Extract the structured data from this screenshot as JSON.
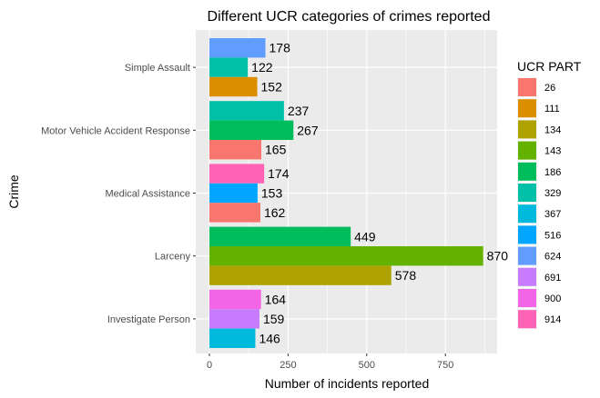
{
  "chart_data": {
    "type": "bar",
    "orientation": "horizontal",
    "title": "Different UCR categories of crimes reported",
    "xlabel": "Number of incidents reported",
    "ylabel": "Crime",
    "xlim": [
      0,
      950
    ],
    "x_ticks": [
      0,
      250,
      500,
      750
    ],
    "x_tick_labels": [
      "0",
      "250",
      "500",
      "750"
    ],
    "categories": [
      "Simple Assault",
      "Motor Vehicle Accident Response",
      "Medical Assistance",
      "Larceny",
      "Investigate Person"
    ],
    "bars": [
      {
        "category": "Simple Assault",
        "ucr_part": "624",
        "value": 178
      },
      {
        "category": "Simple Assault",
        "ucr_part": "329",
        "value": 122
      },
      {
        "category": "Simple Assault",
        "ucr_part": "111",
        "value": 152
      },
      {
        "category": "Motor Vehicle Accident Response",
        "ucr_part": "329",
        "value": 237
      },
      {
        "category": "Motor Vehicle Accident Response",
        "ucr_part": "186",
        "value": 267
      },
      {
        "category": "Motor Vehicle Accident Response",
        "ucr_part": "26",
        "value": 165
      },
      {
        "category": "Medical Assistance",
        "ucr_part": "914",
        "value": 174
      },
      {
        "category": "Medical Assistance",
        "ucr_part": "516",
        "value": 153
      },
      {
        "category": "Medical Assistance",
        "ucr_part": "26",
        "value": 162
      },
      {
        "category": "Larceny",
        "ucr_part": "186",
        "value": 449
      },
      {
        "category": "Larceny",
        "ucr_part": "143",
        "value": 870
      },
      {
        "category": "Larceny",
        "ucr_part": "134",
        "value": 578
      },
      {
        "category": "Investigate Person",
        "ucr_part": "900",
        "value": 164
      },
      {
        "category": "Investigate Person",
        "ucr_part": "691",
        "value": 159
      },
      {
        "category": "Investigate Person",
        "ucr_part": "367",
        "value": 146
      }
    ],
    "legend": {
      "title": "UCR PART",
      "placement": "right",
      "items": [
        {
          "label": "26",
          "color": "#F8766D"
        },
        {
          "label": "111",
          "color": "#DB8E00"
        },
        {
          "label": "134",
          "color": "#AEA200"
        },
        {
          "label": "143",
          "color": "#64B200"
        },
        {
          "label": "186",
          "color": "#00BD5C"
        },
        {
          "label": "329",
          "color": "#00C1A7"
        },
        {
          "label": "367",
          "color": "#00BADE"
        },
        {
          "label": "516",
          "color": "#00A6FF"
        },
        {
          "label": "624",
          "color": "#619CFF"
        },
        {
          "label": "691",
          "color": "#C77CFF"
        },
        {
          "label": "900",
          "color": "#F265E7"
        },
        {
          "label": "914",
          "color": "#FF63B6"
        }
      ]
    },
    "grid": true,
    "panel_background": "#EBEBEB",
    "grid_color": "#FFFFFF"
  }
}
